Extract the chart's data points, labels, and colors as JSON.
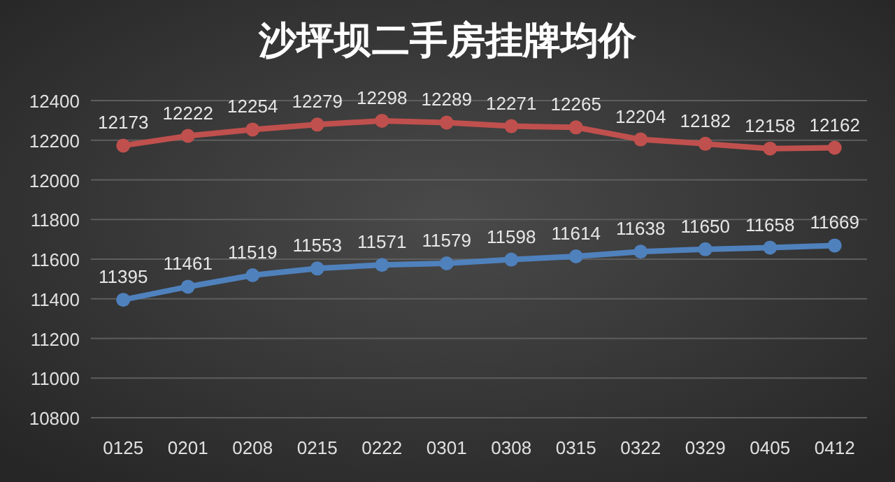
{
  "chart_data": {
    "type": "line",
    "title": "沙坪坝二手房挂牌均价",
    "categories": [
      "0125",
      "0201",
      "0208",
      "0215",
      "0222",
      "0301",
      "0308",
      "0315",
      "0322",
      "0329",
      "0405",
      "0412"
    ],
    "series": [
      {
        "color": "#c0504d",
        "values": [
          12173,
          12222,
          12254,
          12279,
          12298,
          12289,
          12271,
          12265,
          12204,
          12182,
          12158,
          12162
        ]
      },
      {
        "color": "#4f81bd",
        "values": [
          11395,
          11461,
          11519,
          11553,
          11571,
          11579,
          11598,
          11614,
          11638,
          11650,
          11658,
          11669
        ]
      }
    ],
    "ylim": [
      10800,
      12400
    ],
    "yticks": [
      10800,
      11000,
      11200,
      11400,
      11600,
      11800,
      12000,
      12200,
      12400
    ],
    "grid": "y",
    "marker": "circle",
    "data_labels": true
  }
}
